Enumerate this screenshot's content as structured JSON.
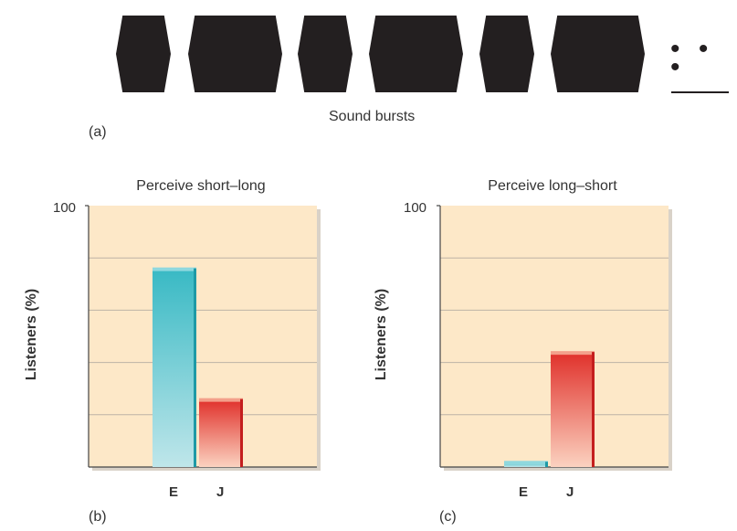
{
  "panel_a": {
    "letter": "(a)",
    "caption": "Sound bursts",
    "burst_widths": [
      "short",
      "long",
      "short",
      "long",
      "short",
      "long"
    ],
    "continuation": "• • •"
  },
  "chart_data": [
    {
      "type": "bar",
      "panel": "(b)",
      "title": "Perceive short–long",
      "ylabel": "Listeners (%)",
      "ylim": [
        0,
        100
      ],
      "yticks_labeled": [
        "100"
      ],
      "grid": true,
      "categories": [
        "E",
        "J"
      ],
      "values": [
        76,
        26
      ],
      "colors": [
        "#3bbcc6",
        "#e0302a"
      ]
    },
    {
      "type": "bar",
      "panel": "(c)",
      "title": "Perceive long–short",
      "ylabel": "Listeners (%)",
      "ylim": [
        0,
        100
      ],
      "yticks_labeled": [
        "100"
      ],
      "grid": true,
      "categories": [
        "E",
        "J"
      ],
      "values": [
        2,
        44
      ],
      "colors": [
        "#3bbcc6",
        "#e0302a"
      ]
    }
  ],
  "colors": {
    "plot_bg": "#fde8c8",
    "gridline": "#bdb3a6",
    "burst": "#231f20"
  }
}
